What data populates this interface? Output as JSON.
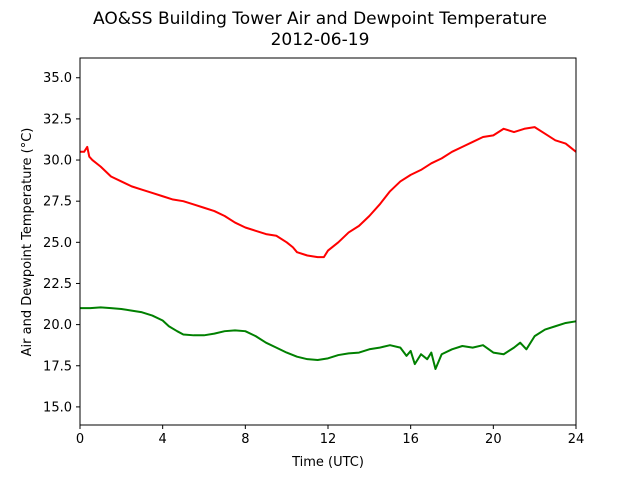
{
  "chart_data": {
    "type": "line",
    "title": "AO&SS Building Tower Air and Dewpoint Temperature",
    "subtitle": "2012-06-19",
    "xlabel": "Time (UTC)",
    "ylabel": "Air and Dewpoint Temperature (°C)",
    "xlim": [
      0,
      24
    ],
    "ylim": [
      13.9,
      36.2
    ],
    "x_ticks": [
      0,
      4,
      8,
      12,
      16,
      20,
      24
    ],
    "x_tick_labels": [
      "0",
      "4",
      "8",
      "12",
      "16",
      "20",
      "24"
    ],
    "y_ticks": [
      15.0,
      17.5,
      20.0,
      22.5,
      25.0,
      27.5,
      30.0,
      32.5,
      35.0
    ],
    "y_tick_labels": [
      "15.0",
      "17.5",
      "20.0",
      "22.5",
      "25.0",
      "27.5",
      "30.0",
      "32.5",
      "35.0"
    ],
    "grid": false,
    "legend": "none",
    "series": [
      {
        "color": "#ff0000",
        "x": [
          0,
          0.2,
          0.35,
          0.45,
          0.6,
          1,
          1.5,
          2,
          2.5,
          3,
          3.5,
          4,
          4.5,
          5,
          5.5,
          6,
          6.5,
          7,
          7.5,
          8,
          8.5,
          9,
          9.5,
          10,
          10.3,
          10.5,
          11,
          11.5,
          11.8,
          12,
          12.5,
          13,
          13.5,
          14,
          14.5,
          15,
          15.5,
          16,
          16.5,
          17,
          17.5,
          18,
          18.5,
          19,
          19.5,
          20,
          20.5,
          21,
          21.5,
          22,
          22.5,
          23,
          23.5,
          24
        ],
        "y": [
          30.5,
          30.5,
          30.8,
          30.2,
          30.0,
          29.6,
          29.0,
          28.7,
          28.4,
          28.2,
          28.0,
          27.8,
          27.6,
          27.5,
          27.3,
          27.1,
          26.9,
          26.6,
          26.2,
          25.9,
          25.7,
          25.5,
          25.4,
          25.0,
          24.7,
          24.4,
          24.2,
          24.1,
          24.1,
          24.5,
          25.0,
          25.6,
          26.0,
          26.6,
          27.3,
          28.1,
          28.7,
          29.1,
          29.4,
          29.8,
          30.1,
          30.5,
          30.8,
          31.1,
          31.4,
          31.5,
          31.9,
          31.7,
          31.9,
          32.0,
          31.6,
          31.2,
          31.0,
          30.5
        ]
      },
      {
        "color": "#008000",
        "x": [
          0,
          0.5,
          1,
          1.5,
          2,
          2.5,
          3,
          3.5,
          4,
          4.3,
          4.7,
          5,
          5.5,
          6,
          6.5,
          7,
          7.5,
          8,
          8.5,
          9,
          9.5,
          10,
          10.5,
          11,
          11.5,
          12,
          12.5,
          13,
          13.5,
          14,
          14.5,
          15,
          15.5,
          15.8,
          16,
          16.2,
          16.5,
          16.8,
          17,
          17.2,
          17.5,
          18,
          18.5,
          19,
          19.5,
          20,
          20.5,
          21,
          21.3,
          21.6,
          22,
          22.5,
          23,
          23.5,
          24
        ],
        "y": [
          21.0,
          21.0,
          21.05,
          21.0,
          20.95,
          20.85,
          20.75,
          20.55,
          20.25,
          19.9,
          19.6,
          19.4,
          19.35,
          19.35,
          19.45,
          19.6,
          19.65,
          19.6,
          19.3,
          18.9,
          18.6,
          18.3,
          18.05,
          17.9,
          17.85,
          17.95,
          18.15,
          18.25,
          18.3,
          18.5,
          18.6,
          18.75,
          18.6,
          18.1,
          18.4,
          17.6,
          18.2,
          17.9,
          18.3,
          17.3,
          18.2,
          18.5,
          18.7,
          18.6,
          18.75,
          18.3,
          18.2,
          18.6,
          18.9,
          18.5,
          19.3,
          19.7,
          19.9,
          20.1,
          20.2
        ]
      }
    ]
  }
}
